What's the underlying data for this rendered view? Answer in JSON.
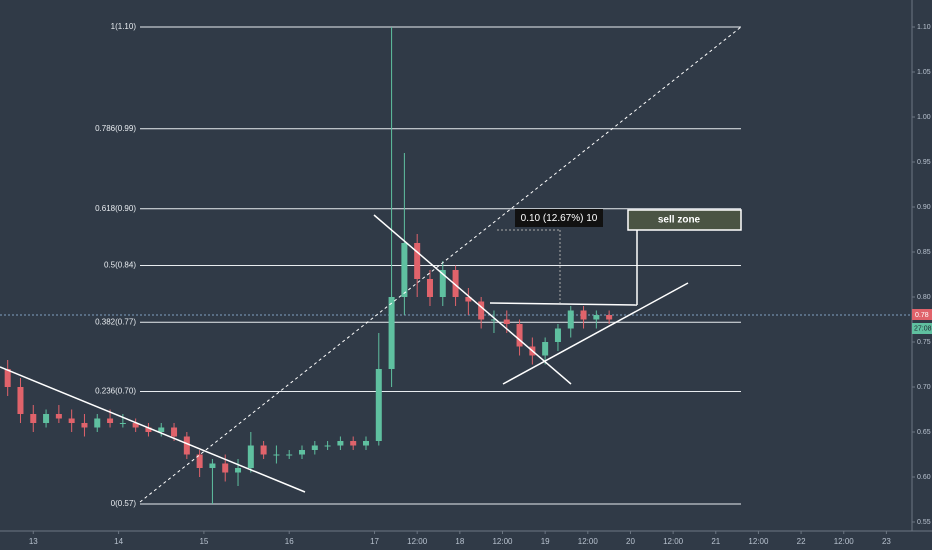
{
  "chart_data": {
    "type": "candlestick",
    "x": [
      12.7,
      12.85,
      13.0,
      13.15,
      13.3,
      13.45,
      13.6,
      13.75,
      13.9,
      14.05,
      14.2,
      14.35,
      14.5,
      14.65,
      14.8,
      14.95,
      15.1,
      15.25,
      15.4,
      15.55,
      15.7,
      15.85,
      16.0,
      16.15,
      16.3,
      16.45,
      16.6,
      16.75,
      16.9,
      17.05,
      17.2,
      17.35,
      17.5,
      17.65,
      17.8,
      17.95,
      18.1,
      18.25,
      18.4,
      18.55,
      18.7,
      18.85,
      19.0,
      19.15,
      19.3,
      19.45,
      19.6,
      19.75
    ],
    "open": [
      0.72,
      0.7,
      0.67,
      0.66,
      0.67,
      0.665,
      0.66,
      0.655,
      0.665,
      0.66,
      0.66,
      0.655,
      0.65,
      0.655,
      0.645,
      0.625,
      0.61,
      0.615,
      0.605,
      0.61,
      0.635,
      0.625,
      0.625,
      0.625,
      0.63,
      0.635,
      0.635,
      0.64,
      0.635,
      0.64,
      0.72,
      0.8,
      0.86,
      0.82,
      0.8,
      0.83,
      0.8,
      0.795,
      0.775,
      0.775,
      0.77,
      0.745,
      0.735,
      0.75,
      0.765,
      0.785,
      0.775,
      0.78
    ],
    "high": [
      0.73,
      0.71,
      0.68,
      0.675,
      0.68,
      0.675,
      0.67,
      0.67,
      0.675,
      0.67,
      0.665,
      0.66,
      0.66,
      0.66,
      0.65,
      0.63,
      0.62,
      0.625,
      0.62,
      0.65,
      0.64,
      0.635,
      0.63,
      0.635,
      0.64,
      0.64,
      0.645,
      0.645,
      0.645,
      0.76,
      1.1,
      0.96,
      0.87,
      0.83,
      0.84,
      0.835,
      0.81,
      0.8,
      0.785,
      0.785,
      0.775,
      0.755,
      0.755,
      0.77,
      0.79,
      0.79,
      0.785,
      0.785
    ],
    "low": [
      0.69,
      0.66,
      0.65,
      0.655,
      0.66,
      0.65,
      0.645,
      0.65,
      0.655,
      0.655,
      0.65,
      0.645,
      0.645,
      0.64,
      0.62,
      0.6,
      0.57,
      0.595,
      0.59,
      0.605,
      0.62,
      0.615,
      0.62,
      0.62,
      0.625,
      0.63,
      0.63,
      0.63,
      0.63,
      0.635,
      0.7,
      0.78,
      0.8,
      0.79,
      0.79,
      0.79,
      0.78,
      0.765,
      0.76,
      0.76,
      0.735,
      0.725,
      0.725,
      0.74,
      0.755,
      0.765,
      0.765,
      0.77
    ],
    "close": [
      0.7,
      0.67,
      0.66,
      0.67,
      0.665,
      0.66,
      0.655,
      0.665,
      0.66,
      0.66,
      0.655,
      0.65,
      0.655,
      0.645,
      0.625,
      0.61,
      0.615,
      0.605,
      0.61,
      0.635,
      0.625,
      0.625,
      0.625,
      0.63,
      0.635,
      0.635,
      0.64,
      0.635,
      0.64,
      0.72,
      0.8,
      0.86,
      0.82,
      0.8,
      0.83,
      0.8,
      0.795,
      0.775,
      0.775,
      0.77,
      0.745,
      0.735,
      0.75,
      0.765,
      0.785,
      0.775,
      0.78,
      0.775
    ],
    "up_color": "#5fc0a0",
    "down_color": "#e0636b",
    "xlim": [
      12.61,
      23.3
    ],
    "xticks": [
      13,
      14,
      15,
      16,
      17,
      {
        "value": 17.5,
        "label": "12:00"
      },
      18,
      {
        "value": 18.5,
        "label": "12:00"
      },
      19,
      {
        "value": 19.5,
        "label": "12:00"
      },
      20,
      {
        "value": 20.5,
        "label": "12:00"
      },
      21,
      {
        "value": 21.5,
        "label": "12:00"
      },
      22,
      {
        "value": 22.5,
        "label": "12:00"
      },
      23
    ],
    "ylim": [
      0.54,
      1.13
    ],
    "yticks": [
      {
        "value": 1.1,
        "label": "1.10"
      },
      1.05,
      {
        "value": 1.0,
        "label": "1.00"
      },
      0.95,
      {
        "value": 0.9,
        "label": "0.90"
      },
      0.85,
      {
        "value": 0.8,
        "label": "0.80"
      },
      0.75,
      {
        "value": 0.7,
        "label": "0.70"
      },
      0.65,
      {
        "value": 0.6,
        "label": "0.60"
      },
      0.55
    ],
    "fib_levels": [
      {
        "value": 1.1,
        "label": "1(1.10)"
      },
      {
        "value": 0.987,
        "label": "0.786(0.99)"
      },
      {
        "value": 0.898,
        "label": "0.618(0.90)"
      },
      {
        "value": 0.835,
        "label": "0.5(0.84)"
      },
      {
        "value": 0.772,
        "label": "0.382(0.77)"
      },
      {
        "value": 0.695,
        "label": "0.236(0.70)"
      },
      {
        "value": 0.57,
        "label": "0(0.57)"
      }
    ],
    "last_price": {
      "value": 0.78,
      "label": "0.78"
    },
    "countdown": "27:08",
    "measure_label": "0.10 (12.67%) 10",
    "zone_label": "sell zone"
  }
}
